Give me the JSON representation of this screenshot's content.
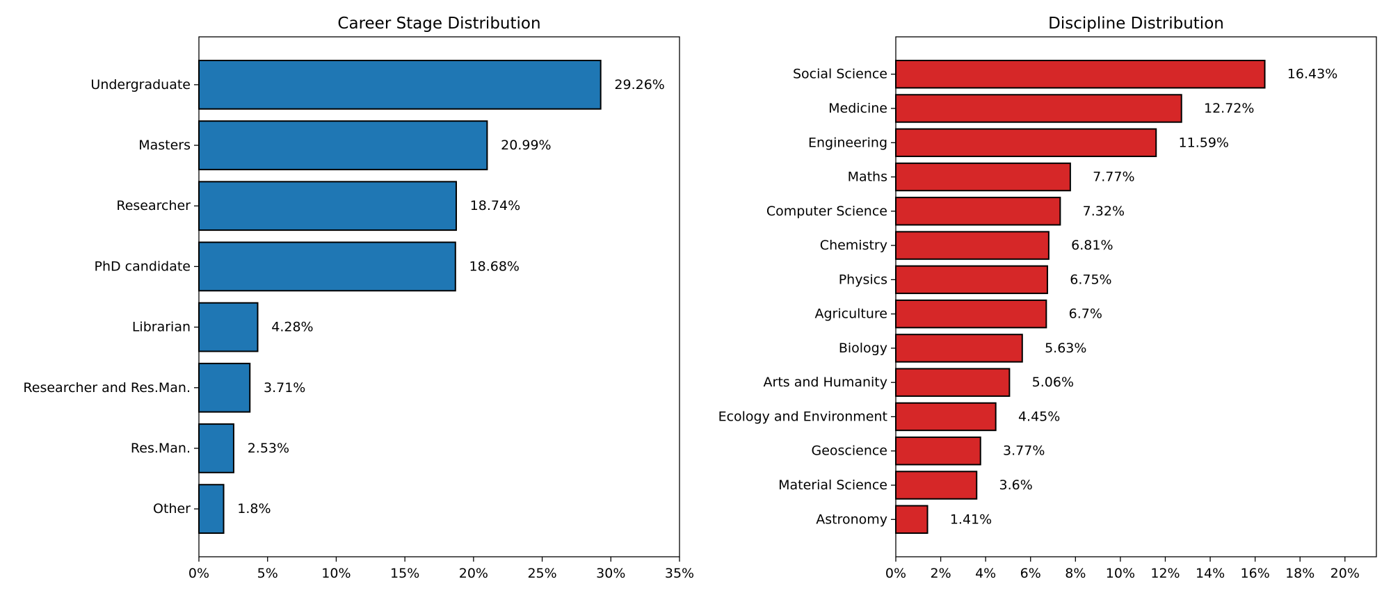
{
  "chart_data": [
    {
      "type": "bar",
      "orientation": "horizontal",
      "title": "Career Stage Distribution",
      "xlabel": "",
      "ylabel": "",
      "categories": [
        "Undergraduate",
        "Masters",
        "Researcher",
        "PhD candidate",
        "Librarian",
        "Researcher and Res.Man.",
        "Res.Man.",
        "Other"
      ],
      "values": [
        29.26,
        20.99,
        18.74,
        18.68,
        4.28,
        3.71,
        2.53,
        1.8
      ],
      "data_labels": [
        "29.26%",
        "20.99%",
        "18.74%",
        "18.68%",
        "4.28%",
        "3.71%",
        "2.53%",
        "1.8%"
      ],
      "xlim": [
        0,
        35
      ],
      "xticks": [
        0,
        5,
        10,
        15,
        20,
        25,
        30,
        35
      ],
      "xtick_labels": [
        "0%",
        "5%",
        "10%",
        "15%",
        "20%",
        "25%",
        "30%",
        "35%"
      ],
      "value_unit": "%",
      "bar_color": "#1f77b4",
      "edge_color": "#000000",
      "grid": false,
      "legend": "none"
    },
    {
      "type": "bar",
      "orientation": "horizontal",
      "title": "Discipline Distribution",
      "xlabel": "",
      "ylabel": "",
      "categories": [
        "Social Science",
        "Medicine",
        "Engineering",
        "Maths",
        "Computer Science",
        "Chemistry",
        "Physics",
        "Agriculture",
        "Biology",
        "Arts and Humanity",
        "Ecology and Environment",
        "Geoscience",
        "Material Science",
        "Astronomy"
      ],
      "values": [
        16.43,
        12.72,
        11.59,
        7.77,
        7.32,
        6.81,
        6.75,
        6.7,
        5.63,
        5.06,
        4.45,
        3.77,
        3.6,
        1.41
      ],
      "data_labels": [
        "16.43%",
        "12.72%",
        "11.59%",
        "7.77%",
        "7.32%",
        "6.81%",
        "6.75%",
        "6.7%",
        "5.63%",
        "5.06%",
        "4.45%",
        "3.77%",
        "3.6%",
        "1.41%"
      ],
      "xlim": [
        0,
        21.4
      ],
      "xticks": [
        0,
        2,
        4,
        6,
        8,
        10,
        12,
        14,
        16,
        18,
        20
      ],
      "xtick_labels": [
        "0%",
        "2%",
        "4%",
        "6%",
        "8%",
        "10%",
        "12%",
        "14%",
        "16%",
        "18%",
        "20%"
      ],
      "value_unit": "%",
      "bar_color": "#d62728",
      "edge_color": "#000000",
      "grid": false,
      "legend": "none"
    }
  ]
}
